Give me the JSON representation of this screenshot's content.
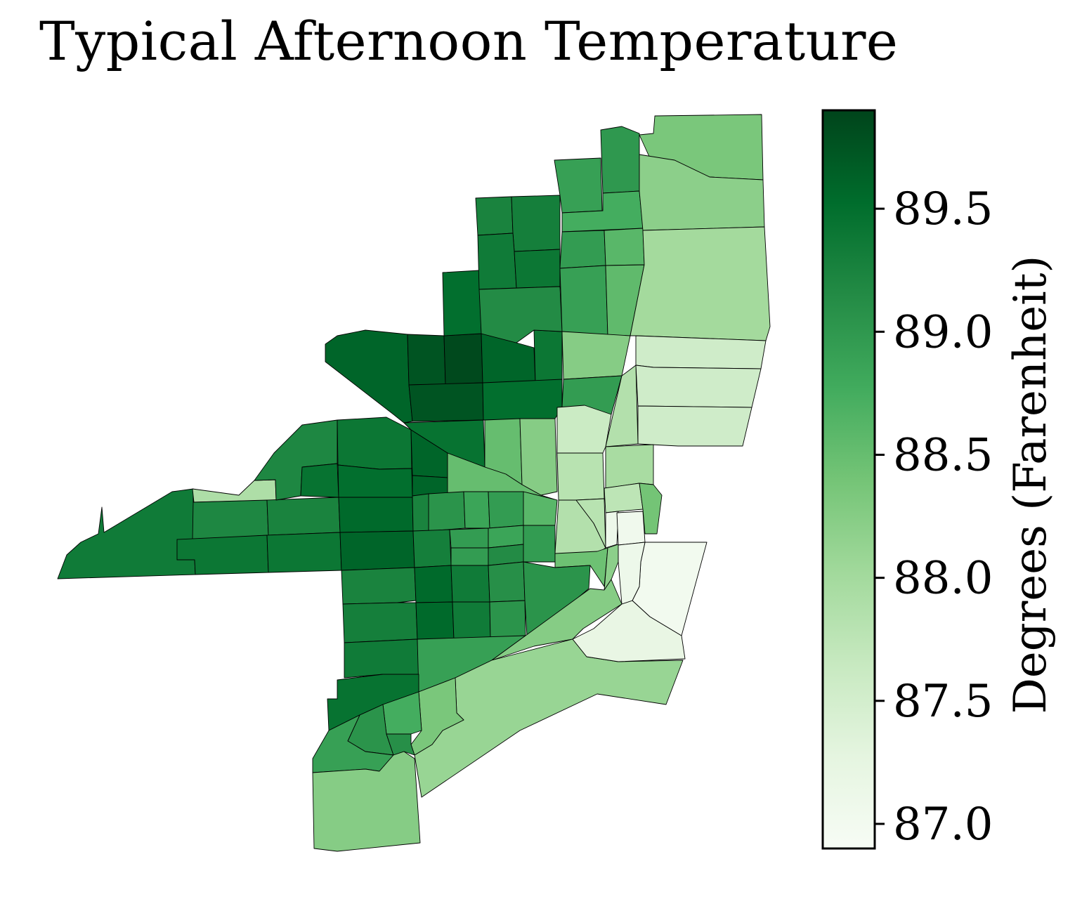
{
  "title": "Typical Afternoon Temperature",
  "colorbar": {
    "label": "Degrees (Farenheit)",
    "min": 86.9,
    "max": 89.9,
    "ticks": [
      "87.0",
      "87.5",
      "88.0",
      "88.5",
      "89.0",
      "89.5"
    ],
    "colormap": "Greens",
    "colors": [
      "#f7fcf5",
      "#e5f5e0",
      "#c7e9c0",
      "#a1d99b",
      "#74c476",
      "#41ab5d",
      "#238b45",
      "#006d2c",
      "#00441b"
    ]
  },
  "map_data": {
    "type": "choropleth",
    "value_unit": "°F"
  }
}
